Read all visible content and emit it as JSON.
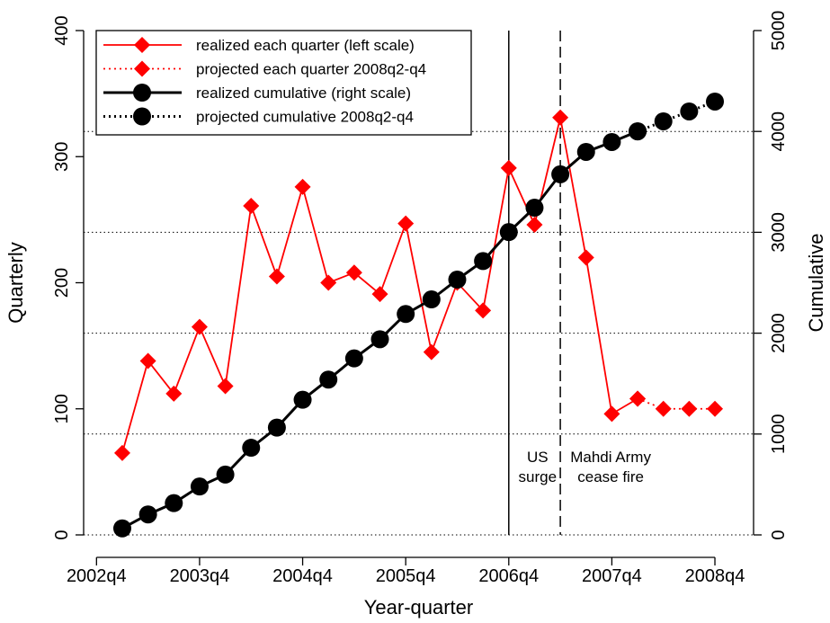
{
  "chart_data": {
    "type": "line",
    "x_label": "Year-quarter",
    "y_label": "Quarterly",
    "y2_label": "Cumulative",
    "x": [
      1,
      2,
      3,
      4,
      5,
      6,
      7,
      8,
      9,
      10,
      11,
      12,
      13,
      14,
      15,
      16,
      17,
      18,
      19,
      20,
      21,
      22,
      23,
      24
    ],
    "xlim": [
      -0.5,
      25.5
    ],
    "xticks": [
      {
        "value": 0,
        "label": "2002q4"
      },
      {
        "value": 4,
        "label": "2003q4"
      },
      {
        "value": 8,
        "label": "2004q4"
      },
      {
        "value": 12,
        "label": "2005q4"
      },
      {
        "value": 16,
        "label": "2006q4"
      },
      {
        "value": 20,
        "label": "2007q4"
      },
      {
        "value": 24,
        "label": "2008q4"
      }
    ],
    "ylim": [
      0,
      400
    ],
    "yticks": [
      0,
      100,
      200,
      300,
      400
    ],
    "y2lim": [
      0,
      5000
    ],
    "y2ticks": [
      0,
      1000,
      2000,
      3000,
      4000,
      5000
    ],
    "grid": "y2",
    "legend": "top-left",
    "series": [
      {
        "name": "realized each quarter (left scale)",
        "color": "#ff0000",
        "style": "solid",
        "marker": "diamond",
        "axis": "y",
        "values": [
          65,
          138,
          112,
          165,
          118,
          261,
          205,
          276,
          200,
          208,
          191,
          247,
          145,
          200,
          178,
          291,
          246,
          331,
          220,
          96,
          108,
          null,
          null,
          null
        ]
      },
      {
        "name": "projected each quarter 2008q2-q4",
        "color": "#ff0000",
        "style": "dotted",
        "marker": "diamond",
        "axis": "y",
        "values": [
          null,
          null,
          null,
          null,
          null,
          null,
          null,
          null,
          null,
          null,
          null,
          null,
          null,
          null,
          null,
          null,
          null,
          null,
          null,
          null,
          108,
          100,
          100,
          100
        ]
      },
      {
        "name": "realized cumulative (right scale)",
        "color": "#000000",
        "style": "solid",
        "marker": "circle",
        "axis": "y2",
        "values": [
          65,
          203,
          315,
          480,
          598,
          864,
          1064,
          1340,
          1540,
          1750,
          1940,
          2190,
          2335,
          2531,
          2715,
          3002,
          3244,
          3575,
          3797,
          3895,
          4001,
          null,
          null,
          null
        ]
      },
      {
        "name": "projected cumulative 2008q2-q4",
        "color": "#000000",
        "style": "dotted",
        "marker": "circle",
        "axis": "y2",
        "values": [
          null,
          null,
          null,
          null,
          null,
          null,
          null,
          null,
          null,
          null,
          null,
          null,
          null,
          null,
          null,
          null,
          null,
          null,
          null,
          null,
          4001,
          4100,
          4198,
          4296
        ]
      }
    ],
    "events": [
      {
        "x": 16,
        "style": "solid",
        "label": [
          "US",
          "surge"
        ]
      },
      {
        "x": 18,
        "style": "dashed",
        "label": [
          "Mahdi Army",
          "cease fire"
        ]
      }
    ]
  }
}
